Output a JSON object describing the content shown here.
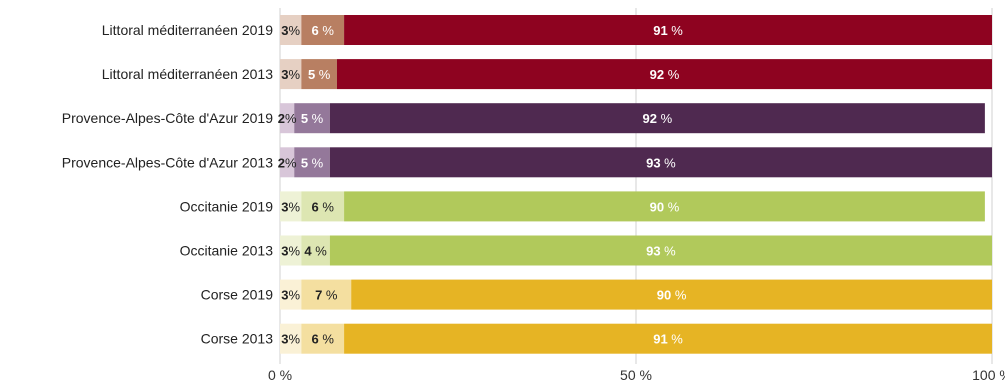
{
  "chart_data": {
    "type": "bar",
    "orientation": "horizontal",
    "stacked": true,
    "title": "",
    "xlabel": "",
    "ylabel": "",
    "xlim": [
      0,
      100
    ],
    "ticks": [
      0,
      50,
      100
    ],
    "tick_labels": [
      "0 %",
      "50 %",
      "100 %"
    ],
    "grid": true,
    "legend": "none",
    "categories": [
      "Littoral méditerranéen 2019",
      "Littoral méditerranéen 2013",
      "Provence-Alpes-Côte d'Azur 2019",
      "Provence-Alpes-Côte d'Azur 2013",
      "Occitanie 2019",
      "Occitanie 2013",
      "Corse 2019",
      "Corse 2013"
    ],
    "series": [
      {
        "values": [
          3,
          3,
          2,
          2,
          3,
          3,
          3,
          3
        ],
        "labels": [
          "3",
          "3",
          "2",
          "2",
          "3",
          "3",
          "3",
          "3"
        ]
      },
      {
        "values": [
          6,
          5,
          5,
          5,
          6,
          4,
          7,
          6
        ],
        "labels": [
          "6",
          "5",
          "5",
          "5",
          "6",
          "4",
          "7",
          "6"
        ]
      },
      {
        "values": [
          91,
          92,
          92,
          93,
          90,
          93,
          90,
          91
        ],
        "labels": [
          "91",
          "92",
          "92",
          "93",
          "90",
          "93",
          "90",
          "91"
        ]
      }
    ],
    "percent_sign": "%",
    "colors": {
      "Littoral méditerranéen": [
        "#e6d0c3",
        "#b87f62",
        "#8e0320"
      ],
      "Provence-Alpes-Côte d'Azur": [
        "#d8c6d9",
        "#94789a",
        "#4f2950"
      ],
      "Occitanie": [
        "#eef2d6",
        "#dde6b2",
        "#b1c95b"
      ],
      "Corse": [
        "#faf1d6",
        "#f4dfa0",
        "#e6b424"
      ]
    },
    "row_color_groups": [
      "Littoral méditerranéen",
      "Littoral méditerranéen",
      "Provence-Alpes-Côte d'Azur",
      "Provence-Alpes-Côte d'Azur",
      "Occitanie",
      "Occitanie",
      "Corse",
      "Corse"
    ],
    "label_colors": [
      "#ffffff",
      "#222222"
    ],
    "grid_color": "#d0d0d0"
  }
}
